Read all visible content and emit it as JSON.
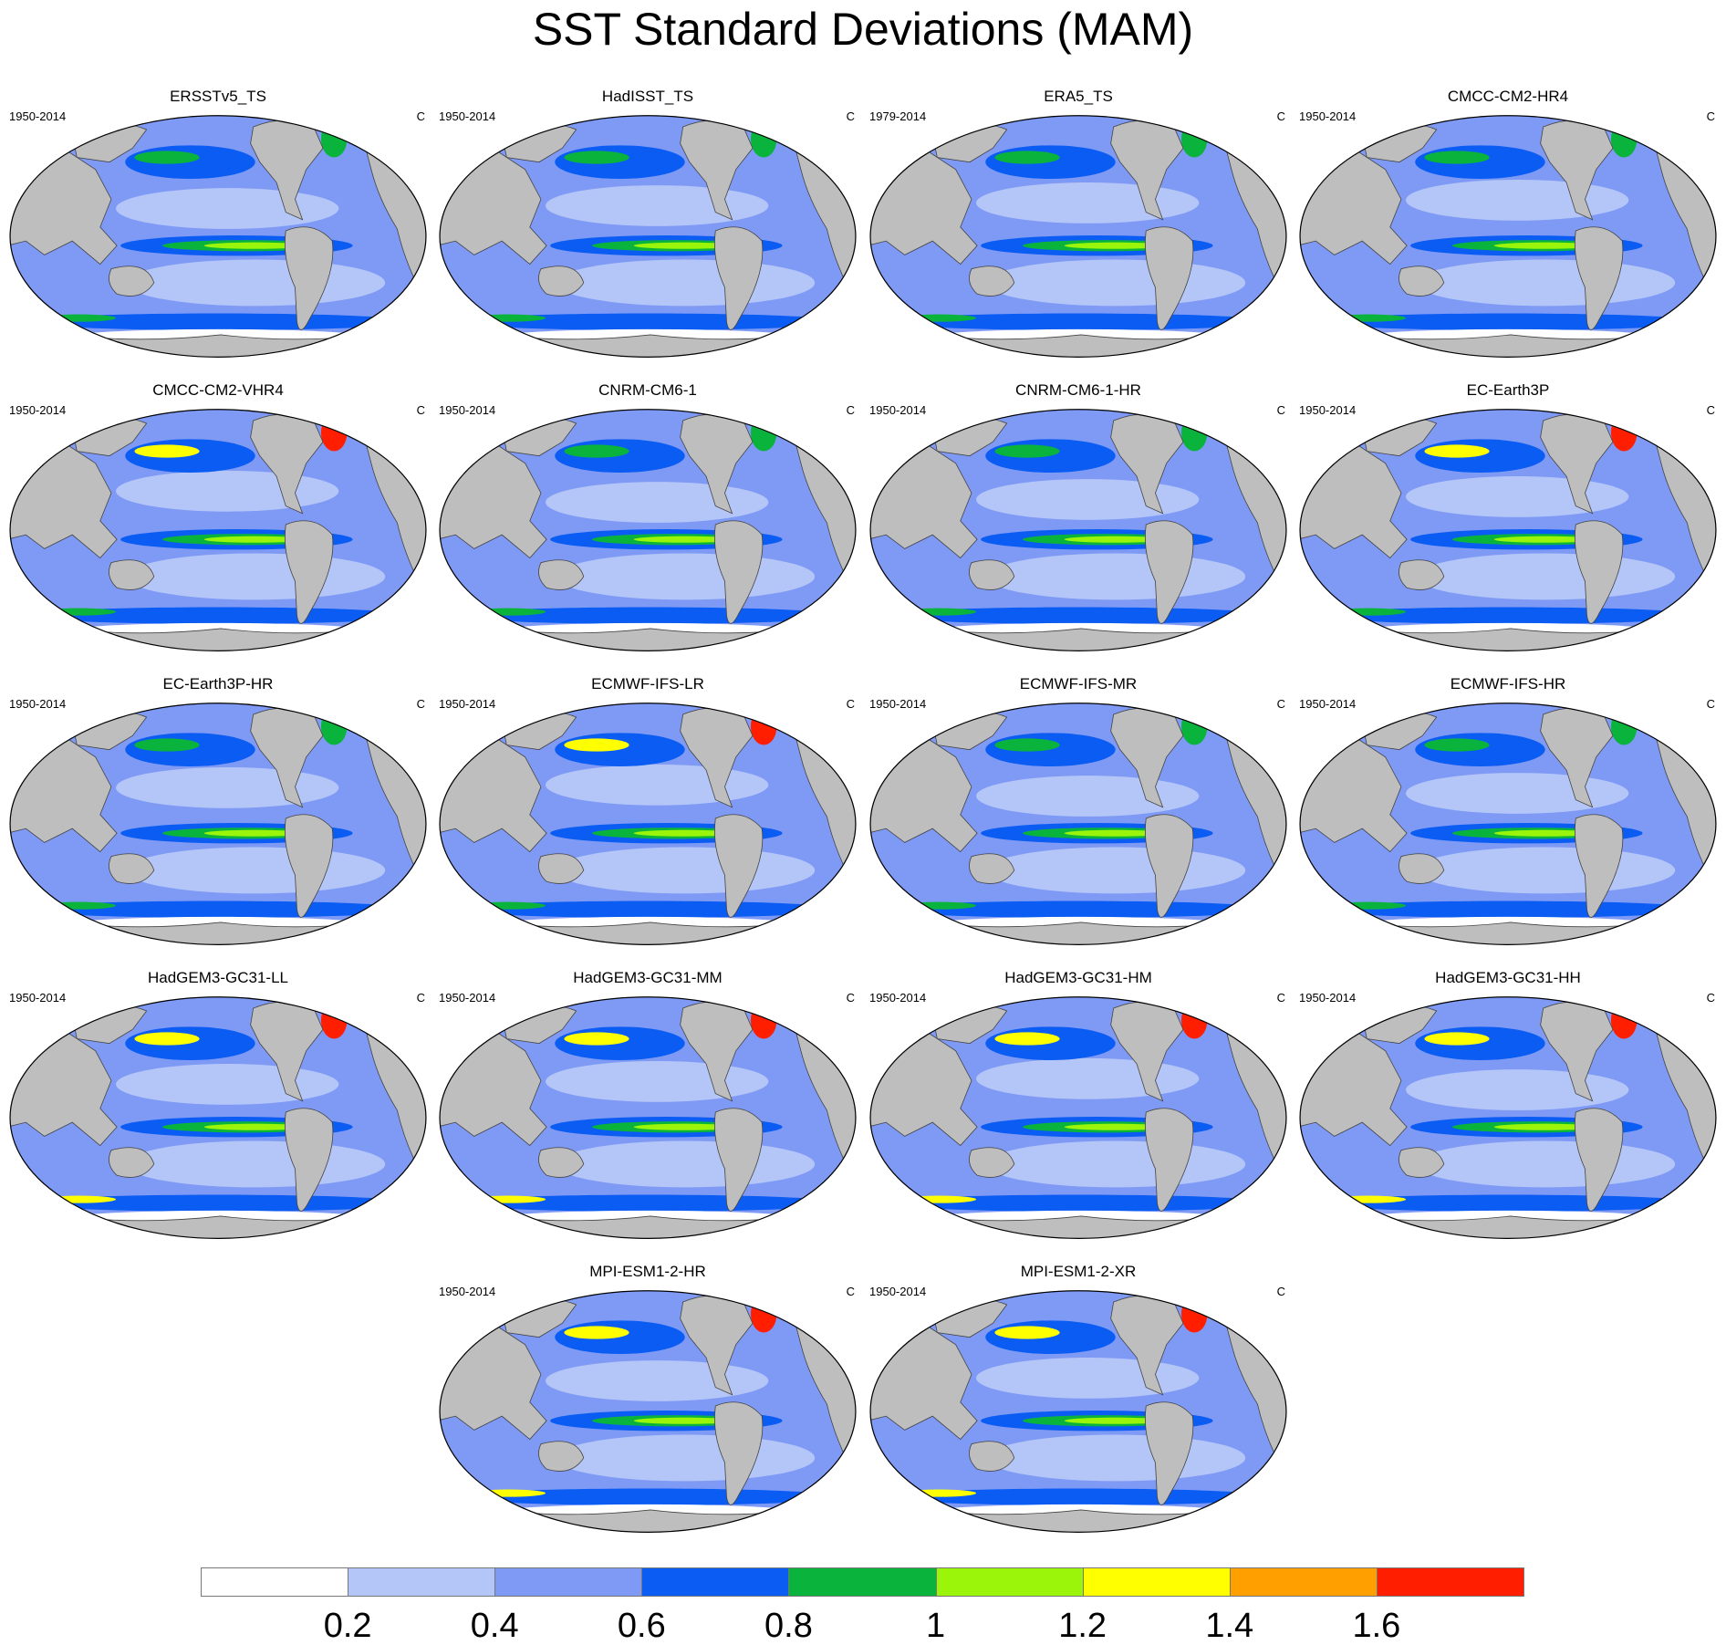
{
  "title": "SST Standard Deviations (MAM)",
  "unit": "C",
  "colors": {
    "land": "#bebebe",
    "coast": "#444444",
    "levels": [
      "#ffffff",
      "#b4c6f8",
      "#7f9af5",
      "#0a5cf2",
      "#0ab43c",
      "#9af50a",
      "#ffff00",
      "#ffa000",
      "#ff1e00"
    ]
  },
  "colorbar": {
    "labels": [
      "0.2",
      "0.4",
      "0.6",
      "0.8",
      "1",
      "1.2",
      "1.4",
      "1.6"
    ]
  },
  "panels": [
    {
      "name": "ERSSTv5_TS",
      "period": "1950-2014"
    },
    {
      "name": "HadISST_TS",
      "period": "1950-2014"
    },
    {
      "name": "ERA5_TS",
      "period": "1979-2014"
    },
    {
      "name": "CMCC-CM2-HR4",
      "period": "1950-2014"
    },
    {
      "name": "CMCC-CM2-VHR4",
      "period": "1950-2014"
    },
    {
      "name": "CNRM-CM6-1",
      "period": "1950-2014"
    },
    {
      "name": "CNRM-CM6-1-HR",
      "period": "1950-2014"
    },
    {
      "name": "EC-Earth3P",
      "period": "1950-2014"
    },
    {
      "name": "EC-Earth3P-HR",
      "period": "1950-2014"
    },
    {
      "name": "ECMWF-IFS-LR",
      "period": "1950-2014"
    },
    {
      "name": "ECMWF-IFS-MR",
      "period": "1950-2014"
    },
    {
      "name": "ECMWF-IFS-HR",
      "period": "1950-2014"
    },
    {
      "name": "HadGEM3-GC31-LL",
      "period": "1950-2014"
    },
    {
      "name": "HadGEM3-GC31-MM",
      "period": "1950-2014"
    },
    {
      "name": "HadGEM3-GC31-HM",
      "period": "1950-2014"
    },
    {
      "name": "HadGEM3-GC31-HH",
      "period": "1950-2014"
    },
    {
      "name": "MPI-ESM1-2-HR",
      "period": "1950-2014"
    },
    {
      "name": "MPI-ESM1-2-XR",
      "period": "1950-2014"
    }
  ]
}
